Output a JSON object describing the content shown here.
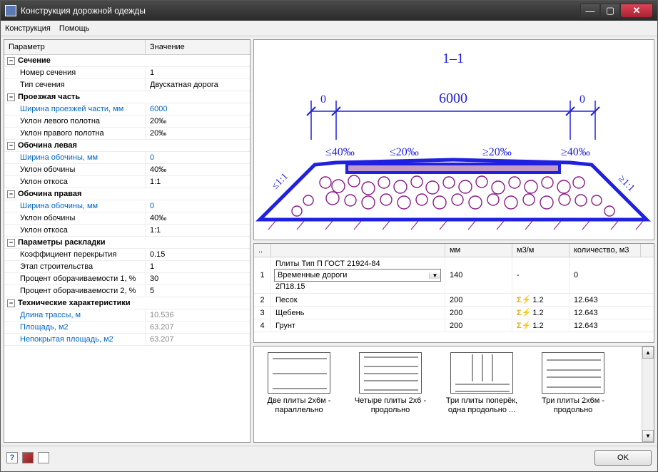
{
  "window": {
    "title": "Конструкция дорожной одежды"
  },
  "menu": {
    "m1": "Конструкция",
    "m2": "Помощь"
  },
  "grid": {
    "h_param": "Параметр",
    "h_val": "Значение",
    "groups": [
      {
        "title": "Сечение",
        "rows": [
          {
            "n": "Номер сечения",
            "v": "1"
          },
          {
            "n": "Тип сечения",
            "v": "Двускатная дорога"
          }
        ]
      },
      {
        "title": "Проезжая часть",
        "rows": [
          {
            "n": "Ширина проезжей части, мм",
            "v": "6000",
            "link": true
          },
          {
            "n": "Уклон левого полотна",
            "v": "20‰"
          },
          {
            "n": "Уклон правого полотна",
            "v": "20‰"
          }
        ]
      },
      {
        "title": "Обочина левая",
        "rows": [
          {
            "n": "Ширина обочины, мм",
            "v": "0",
            "link": true
          },
          {
            "n": "Уклон обочины",
            "v": "40‰"
          },
          {
            "n": "Уклон откоса",
            "v": "1:1"
          }
        ]
      },
      {
        "title": "Обочина правая",
        "rows": [
          {
            "n": "Ширина обочины, мм",
            "v": "0",
            "link": true
          },
          {
            "n": "Уклон обочины",
            "v": "40‰"
          },
          {
            "n": "Уклон откоса",
            "v": "1:1"
          }
        ]
      },
      {
        "title": "Параметры раскладки",
        "rows": [
          {
            "n": "Коэффициент перекрытия",
            "v": "0.15"
          },
          {
            "n": "Этап строительства",
            "v": "1"
          },
          {
            "n": "Процент оборачиваемости 1, %",
            "v": "30"
          },
          {
            "n": "Процент оборачиваемости 2, %",
            "v": "5"
          }
        ]
      },
      {
        "title": "Технические характеристики",
        "rows": [
          {
            "n": "Длина трассы, м",
            "v": "10.536",
            "link": true,
            "gray": true
          },
          {
            "n": "Площадь, м2",
            "v": "63.207",
            "link": true,
            "gray": true
          },
          {
            "n": "Непокрытая площадь, м2",
            "v": "63.207",
            "link": true,
            "gray": true
          }
        ]
      }
    ]
  },
  "drawing": {
    "section_label": "1–1",
    "width_label": "6000",
    "zero_l": "0",
    "zero_r": "0",
    "s40l": "≤40‰",
    "s20l": "≤20‰",
    "s20r": "≥20‰",
    "s40r": "≥40‰",
    "slope_l": "≤1:1",
    "slope_r": "≥1:1",
    "colors": {
      "line": "#2020e0",
      "accent": "#2020e0",
      "hatch": "#8B1A89",
      "black": "#000"
    }
  },
  "table": {
    "h_mm": "мм",
    "h_m3m": "м3/м",
    "h_qty": "количество, м3",
    "r1": {
      "idx": "1",
      "top": "Плиты Тип П ГОСТ 21924-84",
      "sel": "Временные дороги",
      "bot": "2П18.15",
      "mm": "140",
      "m3m": "-",
      "qty": "0"
    },
    "rows": [
      {
        "idx": "2",
        "mat": "Песок",
        "mm": "200",
        "m3m": "1.2",
        "qty": "12.643"
      },
      {
        "idx": "3",
        "mat": "Щебень",
        "mm": "200",
        "m3m": "1.2",
        "qty": "12.643"
      },
      {
        "idx": "4",
        "mat": "Грунт",
        "mm": "200",
        "m3m": "1.2",
        "qty": "12.643"
      }
    ]
  },
  "templates": [
    {
      "label": "Две плиты 2x6м - параллельно"
    },
    {
      "label": "Четыре плиты 2x6 - продольно"
    },
    {
      "label": "Три плиты поперёк, одна продольно ..."
    },
    {
      "label": "Три плиты 2x6м - продольно"
    }
  ],
  "buttons": {
    "ok": "OK"
  }
}
